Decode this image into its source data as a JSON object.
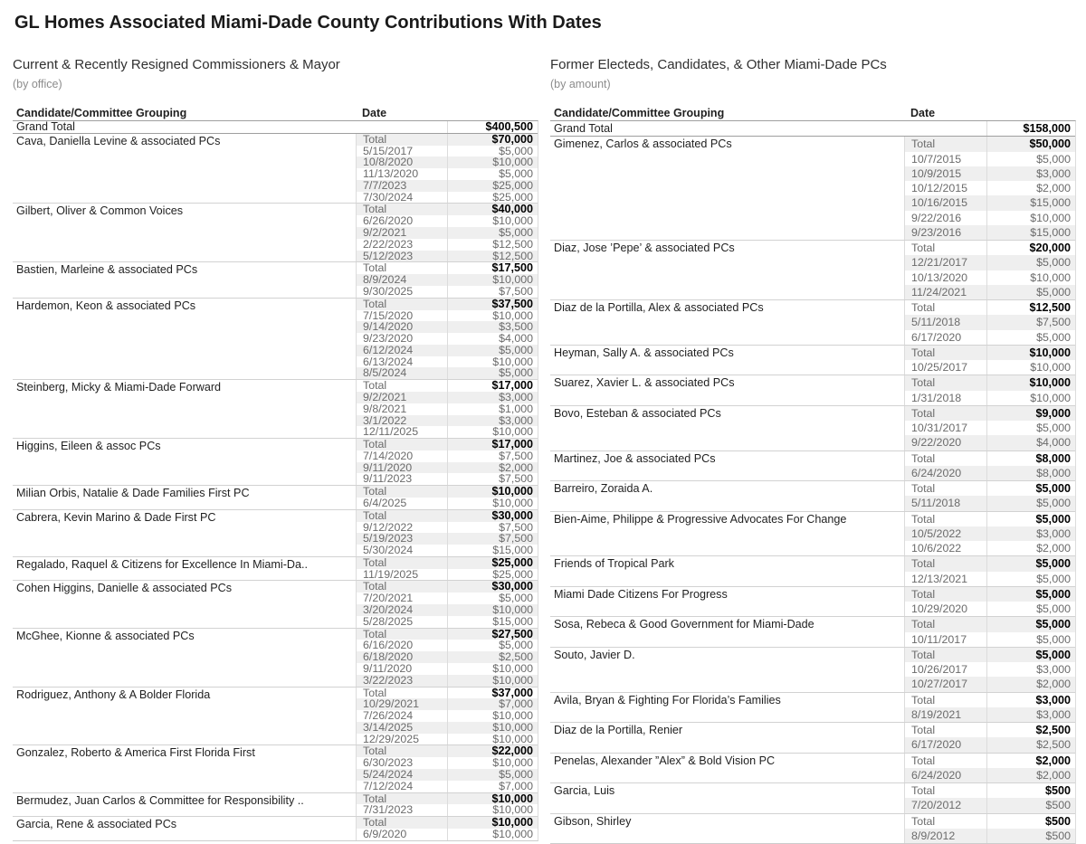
{
  "title": "GL Homes Associated Miami-Dade County Contributions With Dates",
  "panels": [
    {
      "subtitle": "Current & Recently Resigned Commissioners & Mayor",
      "note": "(by office)",
      "col_headers": {
        "grouping": "Candidate/Committee Grouping",
        "date": "Date"
      },
      "grand_total_label": "Grand Total",
      "grand_total": "$400,500",
      "total_label": "Total",
      "groups": [
        {
          "name": "Cava, Daniella Levine & associated PCs",
          "total": "$70,000",
          "rows": [
            [
              "5/15/2017",
              "$5,000"
            ],
            [
              "10/8/2020",
              "$10,000"
            ],
            [
              "11/13/2020",
              "$5,000"
            ],
            [
              "7/7/2023",
              "$25,000"
            ],
            [
              "7/30/2024",
              "$25,000"
            ]
          ]
        },
        {
          "name": "Gilbert, Oliver & Common Voices",
          "total": "$40,000",
          "rows": [
            [
              "6/26/2020",
              "$10,000"
            ],
            [
              "9/2/2021",
              "$5,000"
            ],
            [
              "2/22/2023",
              "$12,500"
            ],
            [
              "5/12/2023",
              "$12,500"
            ]
          ]
        },
        {
          "name": "Bastien, Marleine & associated PCs",
          "total": "$17,500",
          "rows": [
            [
              "8/9/2024",
              "$10,000"
            ],
            [
              "9/30/2025",
              "$7,500"
            ]
          ]
        },
        {
          "name": "Hardemon, Keon & associated PCs",
          "total": "$37,500",
          "rows": [
            [
              "7/15/2020",
              "$10,000"
            ],
            [
              "9/14/2020",
              "$3,500"
            ],
            [
              "9/23/2020",
              "$4,000"
            ],
            [
              "6/12/2024",
              "$5,000"
            ],
            [
              "6/13/2024",
              "$10,000"
            ],
            [
              "8/5/2024",
              "$5,000"
            ]
          ]
        },
        {
          "name": "Steinberg, Micky & Miami-Dade Forward",
          "total": "$17,000",
          "rows": [
            [
              "9/2/2021",
              "$3,000"
            ],
            [
              "9/8/2021",
              "$1,000"
            ],
            [
              "3/1/2022",
              "$3,000"
            ],
            [
              "12/11/2025",
              "$10,000"
            ]
          ]
        },
        {
          "name": "Higgins, Eileen & assoc PCs",
          "total": "$17,000",
          "rows": [
            [
              "7/14/2020",
              "$7,500"
            ],
            [
              "9/11/2020",
              "$2,000"
            ],
            [
              "9/11/2023",
              "$7,500"
            ]
          ]
        },
        {
          "name": "Milian Orbis, Natalie & Dade Families First PC",
          "total": "$10,000",
          "rows": [
            [
              "6/4/2025",
              "$10,000"
            ]
          ]
        },
        {
          "name": "Cabrera, Kevin Marino & Dade First PC",
          "total": "$30,000",
          "rows": [
            [
              "9/12/2022",
              "$7,500"
            ],
            [
              "5/19/2023",
              "$7,500"
            ],
            [
              "5/30/2024",
              "$15,000"
            ]
          ]
        },
        {
          "name": "Regalado, Raquel & Citizens for Excellence In Miami-Da..",
          "total": "$25,000",
          "rows": [
            [
              "11/19/2025",
              "$25,000"
            ]
          ]
        },
        {
          "name": "Cohen Higgins, Danielle & associated PCs",
          "total": "$30,000",
          "rows": [
            [
              "7/20/2021",
              "$5,000"
            ],
            [
              "3/20/2024",
              "$10,000"
            ],
            [
              "5/28/2025",
              "$15,000"
            ]
          ]
        },
        {
          "name": "McGhee, Kionne & associated PCs",
          "total": "$27,500",
          "rows": [
            [
              "6/16/2020",
              "$5,000"
            ],
            [
              "6/18/2020",
              "$2,500"
            ],
            [
              "9/11/2020",
              "$10,000"
            ],
            [
              "3/22/2023",
              "$10,000"
            ]
          ]
        },
        {
          "name": "Rodriguez, Anthony & A Bolder Florida",
          "total": "$37,000",
          "rows": [
            [
              "10/29/2021",
              "$7,000"
            ],
            [
              "7/26/2024",
              "$10,000"
            ],
            [
              "3/14/2025",
              "$10,000"
            ],
            [
              "12/29/2025",
              "$10,000"
            ]
          ]
        },
        {
          "name": "Gonzalez, Roberto & America First Florida First",
          "total": "$22,000",
          "rows": [
            [
              "6/30/2023",
              "$10,000"
            ],
            [
              "5/24/2024",
              "$5,000"
            ],
            [
              "7/12/2024",
              "$7,000"
            ]
          ]
        },
        {
          "name": "Bermudez, Juan Carlos & Committee for Responsibility ..",
          "total": "$10,000",
          "rows": [
            [
              "7/31/2023",
              "$10,000"
            ]
          ]
        },
        {
          "name": "Garcia, Rene & associated PCs",
          "total": "$10,000",
          "rows": [
            [
              "6/9/2020",
              "$10,000"
            ]
          ]
        }
      ]
    },
    {
      "subtitle": "Former Electeds, Candidates, & Other Miami-Dade PCs",
      "note": "(by amount)",
      "col_headers": {
        "grouping": "Candidate/Committee Grouping",
        "date": "Date"
      },
      "grand_total_label": "Grand Total",
      "grand_total": "$158,000",
      "total_label": "Total",
      "groups": [
        {
          "name": "Gimenez, Carlos & associated PCs",
          "total": "$50,000",
          "rows": [
            [
              "10/7/2015",
              "$5,000"
            ],
            [
              "10/9/2015",
              "$3,000"
            ],
            [
              "10/12/2015",
              "$2,000"
            ],
            [
              "10/16/2015",
              "$15,000"
            ],
            [
              "9/22/2016",
              "$10,000"
            ],
            [
              "9/23/2016",
              "$15,000"
            ]
          ]
        },
        {
          "name": "Diaz, Jose ’Pepe’ & associated PCs",
          "total": "$20,000",
          "rows": [
            [
              "12/21/2017",
              "$5,000"
            ],
            [
              "10/13/2020",
              "$10,000"
            ],
            [
              "11/24/2021",
              "$5,000"
            ]
          ]
        },
        {
          "name": "Diaz de la Portilla, Alex & associated PCs",
          "total": "$12,500",
          "rows": [
            [
              "5/11/2018",
              "$7,500"
            ],
            [
              "6/17/2020",
              "$5,000"
            ]
          ]
        },
        {
          "name": "Heyman, Sally A. & associated PCs",
          "total": "$10,000",
          "rows": [
            [
              "10/25/2017",
              "$10,000"
            ]
          ]
        },
        {
          "name": "Suarez, Xavier L. & associated PCs",
          "total": "$10,000",
          "rows": [
            [
              "1/31/2018",
              "$10,000"
            ]
          ]
        },
        {
          "name": "Bovo, Esteban & associated PCs",
          "total": "$9,000",
          "rows": [
            [
              "10/31/2017",
              "$5,000"
            ],
            [
              "9/22/2020",
              "$4,000"
            ]
          ]
        },
        {
          "name": "Martinez, Joe & associated PCs",
          "total": "$8,000",
          "rows": [
            [
              "6/24/2020",
              "$8,000"
            ]
          ]
        },
        {
          "name": "Barreiro, Zoraida A.",
          "total": "$5,000",
          "rows": [
            [
              "5/11/2018",
              "$5,000"
            ]
          ]
        },
        {
          "name": "Bien-Aime, Philippe & Progressive Advocates For Change",
          "total": "$5,000",
          "rows": [
            [
              "10/5/2022",
              "$3,000"
            ],
            [
              "10/6/2022",
              "$2,000"
            ]
          ]
        },
        {
          "name": "Friends of Tropical Park",
          "total": "$5,000",
          "rows": [
            [
              "12/13/2021",
              "$5,000"
            ]
          ]
        },
        {
          "name": "Miami Dade Citizens For Progress",
          "total": "$5,000",
          "rows": [
            [
              "10/29/2020",
              "$5,000"
            ]
          ]
        },
        {
          "name": "Sosa, Rebeca & Good Government for Miami-Dade",
          "total": "$5,000",
          "rows": [
            [
              "10/11/2017",
              "$5,000"
            ]
          ]
        },
        {
          "name": "Souto, Javier D.",
          "total": "$5,000",
          "rows": [
            [
              "10/26/2017",
              "$3,000"
            ],
            [
              "10/27/2017",
              "$2,000"
            ]
          ]
        },
        {
          "name": "Avila, Bryan & Fighting For Florida’s Families",
          "total": "$3,000",
          "rows": [
            [
              "8/19/2021",
              "$3,000"
            ]
          ]
        },
        {
          "name": "Diaz de la Portilla, Renier",
          "total": "$2,500",
          "rows": [
            [
              "6/17/2020",
              "$2,500"
            ]
          ]
        },
        {
          "name": "Penelas, Alexander ”Alex” & Bold Vision PC",
          "total": "$2,000",
          "rows": [
            [
              "6/24/2020",
              "$2,000"
            ]
          ]
        },
        {
          "name": "Garcia, Luis",
          "total": "$500",
          "rows": [
            [
              "7/20/2012",
              "$500"
            ]
          ]
        },
        {
          "name": "Gibson, Shirley",
          "total": "$500",
          "rows": [
            [
              "8/9/2012",
              "$500"
            ]
          ]
        }
      ]
    }
  ]
}
